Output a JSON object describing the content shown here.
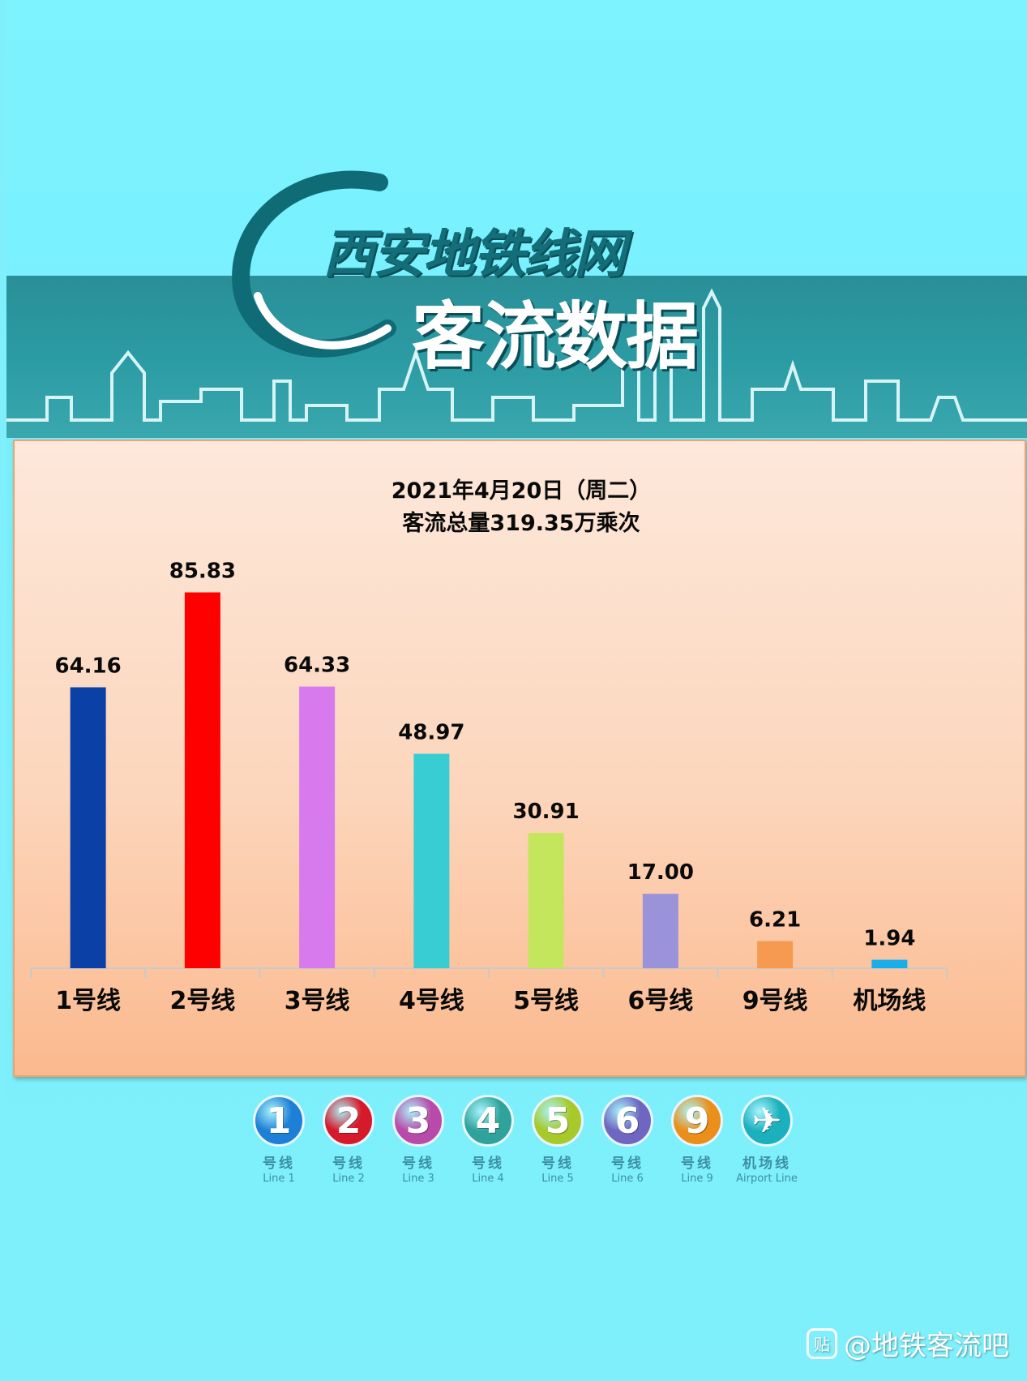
{
  "header": {
    "title_top": "西安地铁线网",
    "title_main": "客流数据"
  },
  "chart_data": {
    "type": "bar",
    "title": "2021年4月20日（周二）",
    "subtitle": "客流总量319.35万乘次",
    "categories": [
      "1号线",
      "2号线",
      "3号线",
      "4号线",
      "5号线",
      "6号线",
      "9号线",
      "机场线"
    ],
    "values": [
      64.16,
      85.83,
      64.33,
      48.97,
      30.91,
      17.0,
      6.21,
      1.94
    ],
    "value_labels": [
      "64.16",
      "85.83",
      "64.33",
      "48.97",
      "30.91",
      "17.00",
      "6.21",
      "1.94"
    ],
    "colors": [
      "#0b40a6",
      "#ff0000",
      "#d67aee",
      "#38ccd3",
      "#c4e65c",
      "#9b93da",
      "#f59a4e",
      "#17aeea"
    ],
    "ylim": [
      0,
      100
    ],
    "grid": false
  },
  "badges": [
    {
      "num": "1",
      "zh": "号线",
      "en": "Line 1",
      "color": "#1e7fd6",
      "icon": "line-1-icon"
    },
    {
      "num": "2",
      "zh": "号线",
      "en": "Line 2",
      "color": "#d71a2a",
      "icon": "line-2-icon"
    },
    {
      "num": "3",
      "zh": "号线",
      "en": "Line 3",
      "color": "#b84aa9",
      "icon": "line-3-icon"
    },
    {
      "num": "4",
      "zh": "号线",
      "en": "Line 4",
      "color": "#2fa39b",
      "icon": "line-4-icon"
    },
    {
      "num": "5",
      "zh": "号线",
      "en": "Line 5",
      "color": "#a7c92a",
      "icon": "line-5-icon"
    },
    {
      "num": "6",
      "zh": "号线",
      "en": "Line 6",
      "color": "#6e66c0",
      "icon": "line-6-icon"
    },
    {
      "num": "9",
      "zh": "号线",
      "en": "Line 9",
      "color": "#eb8f1a",
      "icon": "line-9-icon"
    },
    {
      "num": "✈",
      "zh": "机场线",
      "en": "Airport Line",
      "color": "#1bb0bd",
      "icon": "airplane-icon"
    }
  ],
  "watermark": {
    "icon_glyph": "贴",
    "text": "@地铁客流吧",
    "icon": "tieba-icon"
  }
}
